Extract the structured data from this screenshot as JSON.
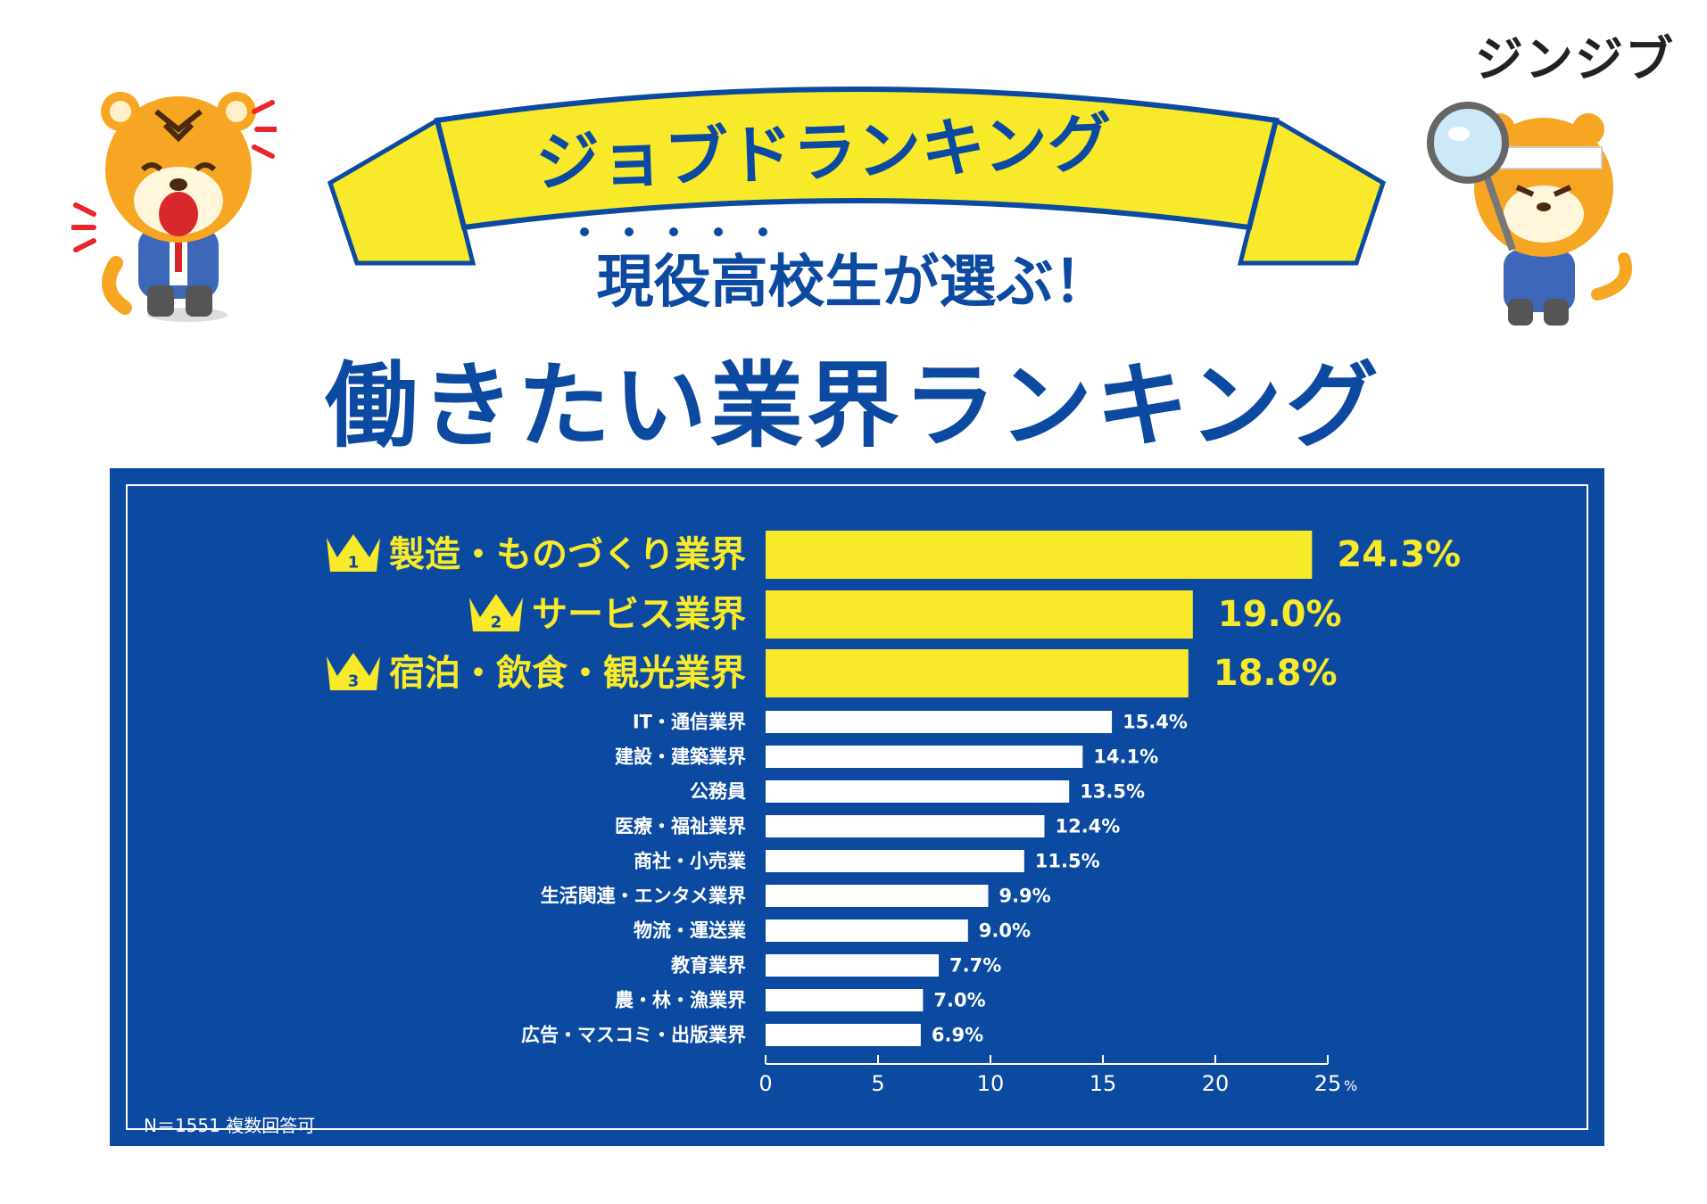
{
  "brand": "ジンジブ",
  "banner": "ジョブドランキング",
  "subtitle": "現役高校生が選ぶ！",
  "title": "働きたい業界ランキング",
  "note": "N＝1551  複数回答可",
  "colors": {
    "navy": "#0b4aa0",
    "yellow": "#f8ea2a",
    "white": "#ffffff",
    "tiger_orange": "#f6a623",
    "red": "#e8262b"
  },
  "chart_data": {
    "type": "bar",
    "orientation": "horizontal",
    "categories": [
      "製造・ものづくり業界",
      "サービス業界",
      "宿泊・飲食・観光業界",
      "IT・通信業界",
      "建設・建築業界",
      "公務員",
      "医療・福祉業界",
      "商社・小売業",
      "生活関連・エンタメ業界",
      "物流・運送業",
      "教育業界",
      "農・林・漁業界",
      "広告・マスコミ・出版業界"
    ],
    "values": [
      24.3,
      19.0,
      18.8,
      15.4,
      14.1,
      13.5,
      12.4,
      11.5,
      9.9,
      9.0,
      7.7,
      7.0,
      6.9
    ],
    "value_labels": [
      "24.3%",
      "19.0%",
      "18.8%",
      "15.4%",
      "14.1%",
      "13.5%",
      "12.4%",
      "11.5%",
      "9.9%",
      "9.0%",
      "7.7%",
      "7.0%",
      "6.9%"
    ],
    "rank_badges": [
      "1",
      "2",
      "3"
    ],
    "xlim": [
      0,
      25
    ],
    "xticks": [
      "0",
      "5",
      "10",
      "15",
      "20",
      "25"
    ],
    "xunit": "%"
  }
}
